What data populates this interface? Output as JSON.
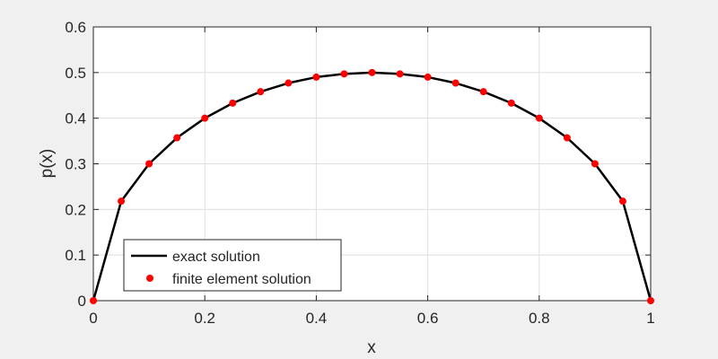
{
  "chart_data": {
    "type": "line",
    "xlabel": "x",
    "ylabel": "p(x)",
    "xlim": [
      0,
      1
    ],
    "ylim": [
      0,
      0.6
    ],
    "xticks": [
      0,
      0.2,
      0.4,
      0.6,
      0.8,
      1
    ],
    "xtick_labels": [
      "0",
      "0.2",
      "0.4",
      "0.6",
      "0.8",
      "1"
    ],
    "yticks": [
      0,
      0.1,
      0.2,
      0.3,
      0.4,
      0.5,
      0.6
    ],
    "ytick_labels": [
      "0",
      "0.1",
      "0.2",
      "0.3",
      "0.4",
      "0.5",
      "0.6"
    ],
    "grid": true,
    "legend_position": "bottom-left",
    "x": [
      0,
      0.05,
      0.1,
      0.15,
      0.2,
      0.25,
      0.3,
      0.35,
      0.4,
      0.45,
      0.5,
      0.55,
      0.6,
      0.65,
      0.7,
      0.75,
      0.8,
      0.85,
      0.9,
      0.95,
      1
    ],
    "series": [
      {
        "name": "exact solution",
        "style": "line",
        "color": "#000000",
        "values": [
          0,
          0.218,
          0.3,
          0.357,
          0.4,
          0.433,
          0.458,
          0.477,
          0.49,
          0.497,
          0.5,
          0.497,
          0.49,
          0.477,
          0.458,
          0.433,
          0.4,
          0.357,
          0.3,
          0.218,
          0
        ]
      },
      {
        "name": "finite element solution",
        "style": "markers",
        "color": "#ff0000",
        "values": [
          0,
          0.218,
          0.3,
          0.357,
          0.4,
          0.433,
          0.458,
          0.477,
          0.49,
          0.497,
          0.5,
          0.497,
          0.49,
          0.477,
          0.458,
          0.433,
          0.4,
          0.357,
          0.3,
          0.218,
          0
        ]
      }
    ]
  }
}
